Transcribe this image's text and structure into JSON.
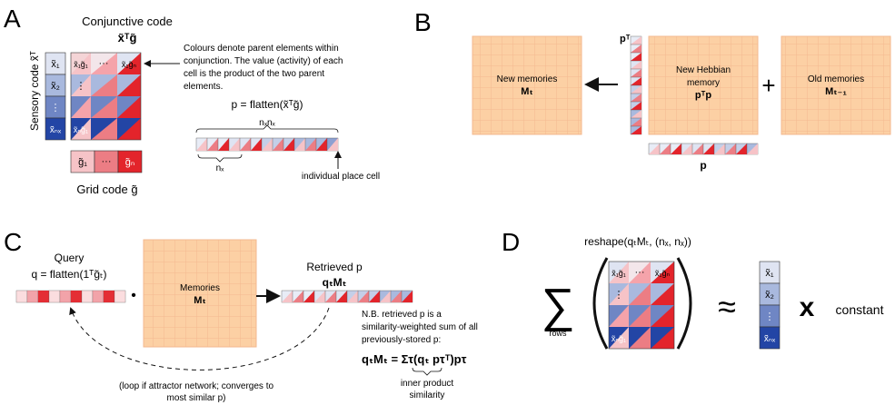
{
  "panels": {
    "a": {
      "letter": "A",
      "conj_title": "Conjunctive code",
      "conj_formula": "x̃ᵀg̃",
      "sensory_label": "Sensory code x̃ᵀ",
      "sensory_cells": [
        "x̃₁",
        "x̃₂",
        "⋮",
        "x̃ₙₓ"
      ],
      "matrix_top_left": "x̃₁g̃₁",
      "matrix_dots": "···",
      "matrix_top_right": "x̃₁g̃ₙ",
      "matrix_vdots": "⋮",
      "matrix_bottom_left": "x̃ₙg̃₁",
      "grid_cells": [
        "g̃₁",
        "···",
        "g̃ₙ"
      ],
      "grid_label": "Grid code g̃",
      "note": [
        "Colours denote parent elements within",
        "conjunction. The value (activity) of each",
        "cell is the product of the two parent",
        "elements."
      ],
      "p_formula": "p = flatten(x̃ᵀg̃)",
      "nx_ng": "nₓnₓ",
      "ng": "nₓ",
      "place_cell": "individual place cell"
    },
    "b": {
      "letter": "B",
      "new_memories": "New memories",
      "new_memories_sym": "Mₜ",
      "hebbian_lines": [
        "New Hebbian",
        "memory"
      ],
      "hebbian_sym": "pᵀp",
      "old_memories": "Old memories",
      "old_memories_sym": "Mₜ₋₁",
      "pT": "pᵀ",
      "p": "p",
      "plus": "+"
    },
    "c": {
      "letter": "C",
      "query": "Query",
      "query_formula": "q = flatten(1ᵀg̃ₜ)",
      "memories": "Memories",
      "memories_sym": "Mₜ",
      "retrieved": "Retrieved p",
      "retrieved_formula": "qₜMₜ",
      "note": [
        "N.B. retrieved p is a",
        "similarity-weighted sum of all",
        "previously-stored p:"
      ],
      "sum_formula": "qₜMₜ = Στ(qₜ pτᵀ)pτ",
      "inner_product": [
        "inner product",
        "similarity"
      ],
      "loop_note": [
        "(loop if attractor network; converges to",
        "most similar p)"
      ],
      "dot": "•"
    },
    "d": {
      "letter": "D",
      "reshape": "reshape(qₜMₜ, (nₓ, nₓ))",
      "sigma": "∑",
      "rows": "rows",
      "approx": "≈",
      "times": "x",
      "constant": "constant",
      "cells": [
        "x̃₁",
        "x̃₂",
        "⋮",
        "x̃ₙₓ"
      ]
    }
  },
  "colors": {
    "orange_fill": "#fcd0a4",
    "orange_grid": "#f4b68a",
    "red_dark": "#e3242b",
    "blue_dark": "#2345a5"
  }
}
